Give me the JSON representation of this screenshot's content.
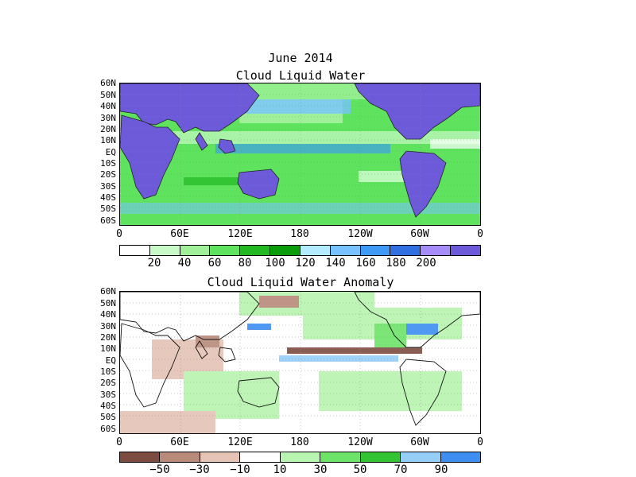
{
  "date_title": "June 2014",
  "panel1": {
    "title": "Cloud Liquid Water",
    "lat_labels": [
      "60N",
      "50N",
      "40N",
      "30N",
      "20N",
      "10N",
      "EQ",
      "10S",
      "20S",
      "30S",
      "40S",
      "50S",
      "60S"
    ],
    "lon_labels": [
      "0",
      "60E",
      "120E",
      "180",
      "120W",
      "60W",
      "0"
    ],
    "colorbar": {
      "colors": [
        "#ffffff",
        "#c8fac8",
        "#a0f09a",
        "#5fe35f",
        "#22b822",
        "#0b9c0b",
        "#b3ecff",
        "#78c3ff",
        "#3e9af5",
        "#2f6fe2",
        "#a58cf7",
        "#6c5ad8"
      ],
      "labels": [
        "20",
        "40",
        "60",
        "80",
        "100",
        "120",
        "140",
        "160",
        "180",
        "200"
      ]
    },
    "land_color": "#6c5ad8"
  },
  "panel2": {
    "title": "Cloud Liquid Water Anomaly",
    "lat_labels": [
      "60N",
      "50N",
      "40N",
      "30N",
      "20N",
      "10N",
      "EQ",
      "10S",
      "20S",
      "30S",
      "40S",
      "50S",
      "60S"
    ],
    "lon_labels": [
      "0",
      "60E",
      "120E",
      "180",
      "120W",
      "60W",
      "0"
    ],
    "colorbar": {
      "colors": [
        "#7d4c40",
        "#b88a7a",
        "#e5c3b5",
        "#ffffff",
        "#b8f5b0",
        "#6ee36a",
        "#33c433",
        "#96cefa",
        "#3e8ef2"
      ],
      "labels": [
        "-50",
        "-30",
        "-10",
        "10",
        "30",
        "50",
        "70",
        "90"
      ]
    }
  }
}
